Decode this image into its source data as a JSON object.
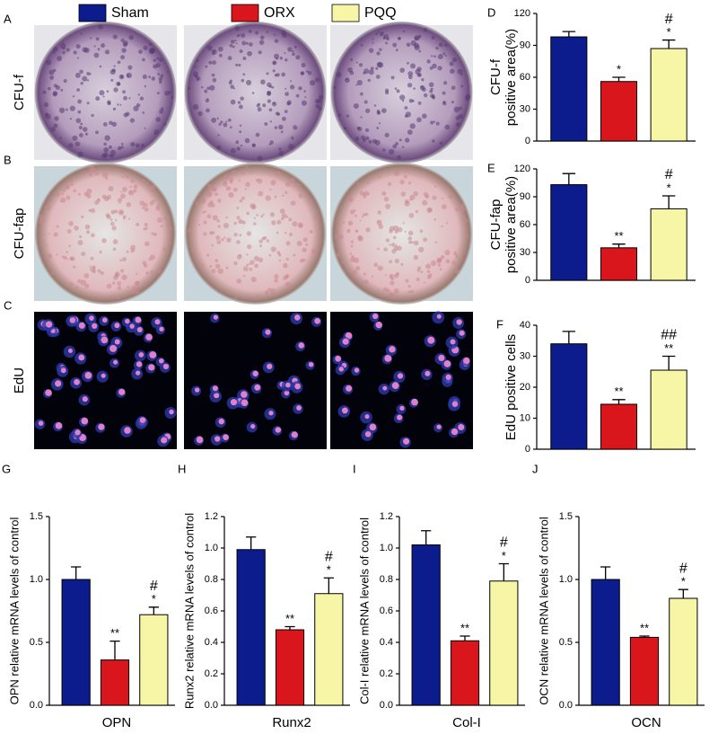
{
  "legend": [
    {
      "name": "Sham",
      "color": "#0c1c8c"
    },
    {
      "name": "ORX",
      "color": "#d8161c"
    },
    {
      "name": "PQQ",
      "color": "#f6f6a6"
    }
  ],
  "image_rows": [
    {
      "panel": "A",
      "label": "CFU-f"
    },
    {
      "panel": "B",
      "label": "CFU-fap"
    },
    {
      "panel": "C",
      "label": "EdU"
    }
  ],
  "chart_data": [
    {
      "type": "bar",
      "panel": "D",
      "ylabel": [
        "CFU-f",
        "positive area(%)"
      ],
      "values": [
        98,
        56,
        87
      ],
      "errors": [
        5,
        4,
        8
      ],
      "markers": [
        null,
        [
          "*"
        ],
        [
          "#",
          "*"
        ]
      ],
      "ylim": [
        0,
        120
      ],
      "yticks": [
        0,
        30,
        60,
        90,
        120
      ]
    },
    {
      "type": "bar",
      "panel": "E",
      "ylabel": [
        "CFU-fap",
        "positive area(%)"
      ],
      "values": [
        103,
        35,
        77
      ],
      "errors": [
        12,
        4,
        14
      ],
      "markers": [
        null,
        [
          "**"
        ],
        [
          "#",
          "*"
        ]
      ],
      "ylim": [
        0,
        120
      ],
      "yticks": [
        0,
        30,
        60,
        90,
        120
      ]
    },
    {
      "type": "bar",
      "panel": "F",
      "ylabel": [
        "EdU positive cells"
      ],
      "values": [
        34,
        14.5,
        25.5
      ],
      "errors": [
        4,
        1.5,
        4.5
      ],
      "markers": [
        null,
        [
          "**"
        ],
        [
          "##",
          "**"
        ]
      ],
      "ylim": [
        0,
        40
      ],
      "yticks": [
        0,
        10,
        20,
        30,
        40
      ]
    },
    {
      "type": "bar",
      "panel": "G",
      "ylabel": [
        "OPN relative mRNA levels of control"
      ],
      "xlabel": "OPN",
      "values": [
        1.0,
        0.36,
        0.72
      ],
      "errors": [
        0.1,
        0.15,
        0.06
      ],
      "markers": [
        null,
        [
          "**"
        ],
        [
          "#",
          "*"
        ]
      ],
      "ylim": [
        0,
        1.5
      ],
      "yticks": [
        {
          "value": 0,
          "label": "0.0"
        },
        0.5,
        {
          "value": 1,
          "label": "1.0"
        },
        1.5
      ]
    },
    {
      "type": "bar",
      "panel": "H",
      "ylabel": [
        "Runx2 relative mRNA levels of control"
      ],
      "xlabel": "Runx2",
      "values": [
        0.99,
        0.48,
        0.71
      ],
      "errors": [
        0.08,
        0.02,
        0.1
      ],
      "markers": [
        null,
        [
          "**"
        ],
        [
          "#",
          "*"
        ]
      ],
      "ylim": [
        0,
        1.2
      ],
      "yticks": [
        {
          "value": 0,
          "label": "0.0"
        },
        0.2,
        0.4,
        0.6,
        0.8,
        {
          "value": 1,
          "label": "1.0"
        },
        1.2
      ]
    },
    {
      "type": "bar",
      "panel": "I",
      "ylabel": [
        "Col-I relative mRNA levels of control"
      ],
      "xlabel": "Col-I",
      "values": [
        1.02,
        0.41,
        0.79
      ],
      "errors": [
        0.09,
        0.03,
        0.11
      ],
      "markers": [
        null,
        [
          "**"
        ],
        [
          "#",
          "*"
        ]
      ],
      "ylim": [
        0,
        1.2
      ],
      "yticks": [
        {
          "value": 0,
          "label": "0.0"
        },
        0.2,
        0.4,
        0.6,
        0.8,
        {
          "value": 1,
          "label": "1.0"
        },
        1.2
      ]
    },
    {
      "type": "bar",
      "panel": "J",
      "ylabel": [
        "OCN relative mRNA levels of control"
      ],
      "xlabel": "OCN",
      "values": [
        1.0,
        0.54,
        0.85
      ],
      "errors": [
        0.1,
        0.01,
        0.07
      ],
      "markers": [
        null,
        [
          "**"
        ],
        [
          "#",
          "*"
        ]
      ],
      "ylim": [
        0,
        1.5
      ],
      "yticks": [
        {
          "value": 0,
          "label": "0.0"
        },
        0.5,
        {
          "value": 1,
          "label": "1.0"
        },
        1.5
      ]
    }
  ]
}
